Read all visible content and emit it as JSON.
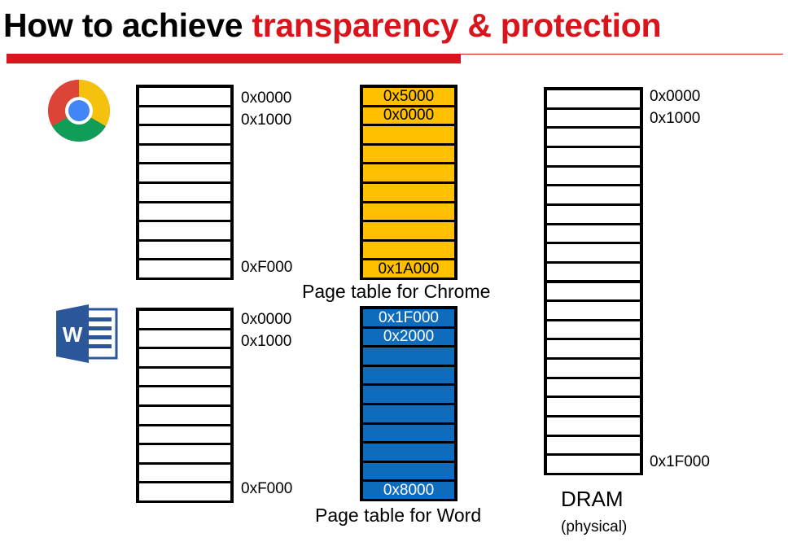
{
  "title": {
    "prefix": "How to achieve ",
    "highlight": "transparency & protection"
  },
  "chrome_vm": {
    "top_labels": [
      "0x0000",
      "0x1000"
    ],
    "bottom_label": "0xF000"
  },
  "chrome_pt": {
    "entries": [
      "0x5000",
      "0x0000",
      "",
      "",
      "",
      "",
      "",
      "",
      "",
      "0x1A000"
    ],
    "caption": "Page table for Chrome"
  },
  "word_vm": {
    "top_labels": [
      "0x0000",
      "0x1000"
    ],
    "bottom_label": "0xF000"
  },
  "word_pt": {
    "entries": [
      "0x1F000",
      "0x2000",
      "",
      "",
      "",
      "",
      "",
      "",
      "",
      "0x8000"
    ],
    "caption": "Page table for Word"
  },
  "dram": {
    "top_labels": [
      "0x0000",
      "0x1000"
    ],
    "bottom_label": "0x1F000",
    "label": "DRAM",
    "sublabel": "(physical)"
  },
  "icons": {
    "chrome": "chrome-logo-icon",
    "word": "word-logo-icon"
  },
  "colors": {
    "accent": "#d9141c",
    "chrome_table": "#ffc000",
    "word_table": "#0f6cbd"
  }
}
